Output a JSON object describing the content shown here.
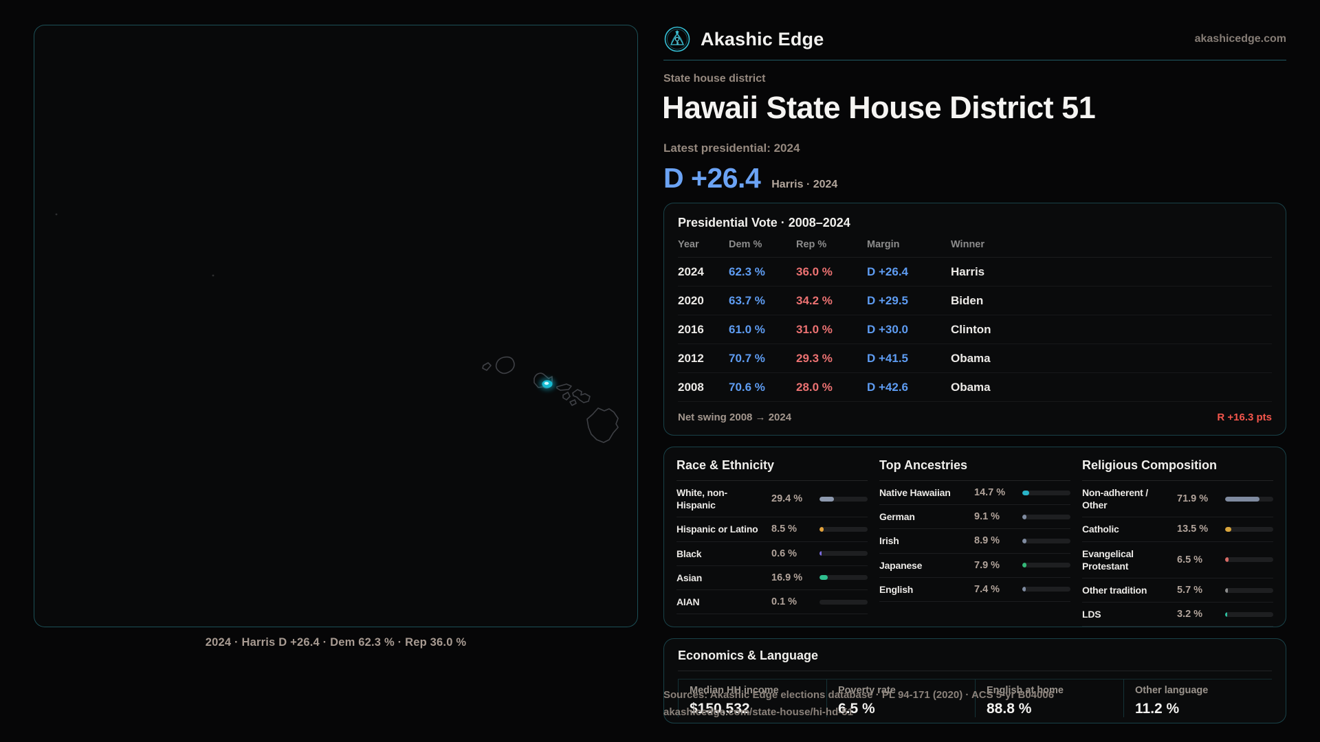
{
  "brand": {
    "name": "Akashic Edge",
    "site": "akashicedge.com"
  },
  "hero": {
    "eyebrow": "State house district",
    "title": "Hawaii State House District 51",
    "latest_label": "Latest presidential: 2024",
    "margin_headline": "D +26.4",
    "margin_note": "Harris · 2024"
  },
  "map": {
    "caption": "2024 · Harris D +26.4 · Dem 62.3 % · Rep 36.0 %",
    "highlight_color": "#1ac0d8"
  },
  "presidential_table": {
    "title": "Presidential Vote · 2008–2024",
    "columns": [
      "Year",
      "Dem %",
      "Rep %",
      "Margin",
      "Winner"
    ],
    "rows": [
      {
        "year": "2024",
        "dem": "62.3 %",
        "rep": "36.0 %",
        "margin": "D +26.4",
        "winner": "Harris"
      },
      {
        "year": "2020",
        "dem": "63.7 %",
        "rep": "34.2 %",
        "margin": "D +29.5",
        "winner": "Biden"
      },
      {
        "year": "2016",
        "dem": "61.0 %",
        "rep": "31.0 %",
        "margin": "D +30.0",
        "winner": "Clinton"
      },
      {
        "year": "2012",
        "dem": "70.7 %",
        "rep": "29.3 %",
        "margin": "D +41.5",
        "winner": "Obama"
      },
      {
        "year": "2008",
        "dem": "70.6 %",
        "rep": "28.0 %",
        "margin": "D +42.6",
        "winner": "Obama"
      }
    ],
    "footer_label": "Net swing 2008 → 2024",
    "footer_value": "R +16.3 pts"
  },
  "demographics": {
    "race": {
      "title": "Race & Ethnicity",
      "items": [
        {
          "label": "White, non-Hispanic",
          "value": "29.4 %",
          "pct": 29.4,
          "color": "#8d99ae"
        },
        {
          "label": "Hispanic or Latino",
          "value": "8.5 %",
          "pct": 8.5,
          "color": "#e2a23b"
        },
        {
          "label": "Black",
          "value": "0.6 %",
          "pct": 0.6,
          "color": "#7d6ce0"
        },
        {
          "label": "Asian",
          "value": "16.9 %",
          "pct": 16.9,
          "color": "#2fbf8f"
        },
        {
          "label": "AIAN",
          "value": "0.1 %",
          "pct": 0.1,
          "color": "#8d99ae"
        }
      ]
    },
    "ancestries": {
      "title": "Top Ancestries",
      "items": [
        {
          "label": "Native Hawaiian",
          "value": "14.7 %",
          "pct": 14.7,
          "color": "#29b4c9"
        },
        {
          "label": "German",
          "value": "9.1 %",
          "pct": 9.1,
          "color": "#7f8ba0"
        },
        {
          "label": "Irish",
          "value": "8.9 %",
          "pct": 8.9,
          "color": "#7f8ba0"
        },
        {
          "label": "Japanese",
          "value": "7.9 %",
          "pct": 7.9,
          "color": "#34b878"
        },
        {
          "label": "English",
          "value": "7.4 %",
          "pct": 7.4,
          "color": "#7f8ba0"
        }
      ]
    },
    "religion": {
      "title": "Religious Composition",
      "items": [
        {
          "label": "Non-adherent / Other",
          "value": "71.9 %",
          "pct": 71.9,
          "color": "#7f8ba0"
        },
        {
          "label": "Catholic",
          "value": "13.5 %",
          "pct": 13.5,
          "color": "#d9a53c"
        },
        {
          "label": "Evangelical Protestant",
          "value": "6.5 %",
          "pct": 6.5,
          "color": "#d96b66"
        },
        {
          "label": "Other tradition",
          "value": "5.7 %",
          "pct": 5.7,
          "color": "#8b8b8b"
        },
        {
          "label": "LDS",
          "value": "3.2 %",
          "pct": 3.2,
          "color": "#2fbf9f"
        }
      ]
    }
  },
  "economics": {
    "title": "Economics & Language",
    "stats": [
      {
        "label": "Median HH income",
        "value": "$150,532"
      },
      {
        "label": "Poverty rate",
        "value": "6.5 %"
      },
      {
        "label": "English at home",
        "value": "88.8 %"
      },
      {
        "label": "Other language",
        "value": "11.2 %"
      }
    ]
  },
  "sources": {
    "line1": "Sources: Akashic Edge elections database · PL 94-171 (2020) · ACS 5-yr B04006",
    "line2": "akashicedge.com/state-house/hi-hd-51"
  }
}
